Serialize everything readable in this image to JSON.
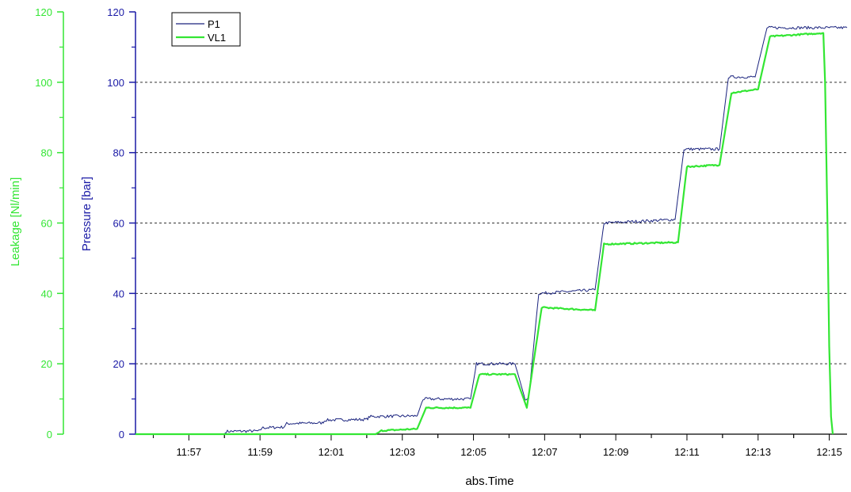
{
  "chart_data": {
    "type": "line",
    "xlabel": "abs.Time",
    "ylabel_left": "Leakage [Nl/min]",
    "ylabel_right": "Pressure [bar]",
    "x_range": [
      "11:55:30",
      "12:15:30"
    ],
    "x_ticks": [
      "11:57",
      "11:59",
      "12:01",
      "12:03",
      "12:05",
      "12:07",
      "12:09",
      "12:11",
      "12:13",
      "12:15"
    ],
    "y_ticks_pressure": [
      "0",
      "20",
      "40",
      "60",
      "80",
      "100",
      "120"
    ],
    "y_ticks_leakage": [
      "0",
      "20",
      "40",
      "60",
      "80",
      "100",
      "120"
    ],
    "ylim_pressure": [
      0,
      120
    ],
    "ylim_leakage": [
      0,
      120
    ],
    "gridlines": [
      20,
      40,
      60,
      80,
      100
    ],
    "legend": "top-left",
    "series": [
      {
        "name": "P1",
        "axis": "Pressure [bar]",
        "color": "#1a237e",
        "noise": 0.4,
        "points": [
          [
            "11:55:30",
            0
          ],
          [
            "11:58:00",
            0
          ],
          [
            "11:58:03",
            0.8
          ],
          [
            "11:59:00",
            0.9
          ],
          [
            "11:59:03",
            1.8
          ],
          [
            "11:59:40",
            2
          ],
          [
            "11:59:45",
            3
          ],
          [
            "12:00:45",
            3.2
          ],
          [
            "12:00:50",
            4
          ],
          [
            "12:02:00",
            4.2
          ],
          [
            "12:02:05",
            5
          ],
          [
            "12:03:25",
            5.2
          ],
          [
            "12:03:35",
            10
          ],
          [
            "12:04:55",
            10
          ],
          [
            "12:05:05",
            20
          ],
          [
            "12:06:10",
            20
          ],
          [
            "12:06:27",
            10
          ],
          [
            "12:06:33",
            10
          ],
          [
            "12:06:50",
            40
          ],
          [
            "12:08:25",
            41
          ],
          [
            "12:08:40",
            60
          ],
          [
            "12:10:40",
            61
          ],
          [
            "12:10:55",
            81
          ],
          [
            "12:11:55",
            81
          ],
          [
            "12:12:10",
            101.5
          ],
          [
            "12:12:55",
            101.5
          ],
          [
            "12:13:15",
            115.5
          ],
          [
            "12:15:30",
            115.5
          ]
        ]
      },
      {
        "name": "VL1",
        "axis": "Leakage [Nl/min]",
        "color": "#33e633",
        "noise": 0.2,
        "points": [
          [
            "11:55:30",
            0
          ],
          [
            "12:02:15",
            0
          ],
          [
            "12:02:25",
            1
          ],
          [
            "12:03:25",
            1.5
          ],
          [
            "12:03:40",
            7.5
          ],
          [
            "12:04:55",
            7.5
          ],
          [
            "12:05:10",
            17
          ],
          [
            "12:06:10",
            17
          ],
          [
            "12:06:30",
            7.5
          ],
          [
            "12:06:55",
            36
          ],
          [
            "12:08:25",
            35.2
          ],
          [
            "12:08:40",
            54
          ],
          [
            "12:10:45",
            54.5
          ],
          [
            "12:11:00",
            76
          ],
          [
            "12:11:55",
            76.5
          ],
          [
            "12:12:15",
            97
          ],
          [
            "12:13:00",
            98
          ],
          [
            "12:13:20",
            113
          ],
          [
            "12:14:50",
            114
          ],
          [
            "12:14:53",
            100
          ],
          [
            "12:14:57",
            60
          ],
          [
            "12:15:00",
            25
          ],
          [
            "12:15:03",
            5
          ],
          [
            "12:15:06",
            0
          ]
        ]
      }
    ],
    "colors": {
      "leakage_axis": "#33e633",
      "pressure_axis": "#1a1aa6",
      "grid": "#333333"
    }
  }
}
